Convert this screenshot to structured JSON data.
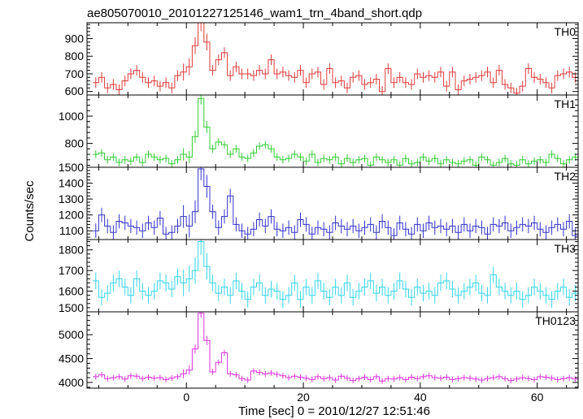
{
  "title": "ae805070010_20101227125146_wam1_trn_4band_short.qdp",
  "ylabel": "Counts/sec",
  "xlabel": "Time [sec] 0 = 2010/12/27 12:51:46",
  "chart_data": {
    "type": "line",
    "style": "step histogram with error bars",
    "title": "ae805070010_20101227125146_wam1_trn_4band_short.qdp",
    "xlabel": "Time [sec] 0 = 2010/12/27 12:51:46",
    "ylabel": "Counts/sec",
    "xlim": [
      -17,
      67
    ],
    "xticks": [
      0,
      20,
      40,
      60
    ],
    "bin_width_sec": 1.0,
    "x_start_sec": -16,
    "panels": [
      {
        "name": "TH0",
        "color": "#e03a3a",
        "ylim": [
          580,
          990
        ],
        "yticks": [
          600,
          700,
          800,
          900
        ],
        "err": 30,
        "peak_t": 1,
        "values": [
          650,
          680,
          620,
          640,
          610,
          660,
          700,
          720,
          680,
          650,
          660,
          630,
          650,
          620,
          690,
          710,
          740,
          860,
          990,
          880,
          720,
          780,
          820,
          690,
          740,
          700,
          700,
          690,
          720,
          700,
          780,
          700,
          710,
          690,
          680,
          720,
          650,
          700,
          710,
          640,
          730,
          650,
          660,
          620,
          680,
          690,
          640,
          650,
          670,
          600,
          730,
          650,
          680,
          650,
          640,
          700,
          680,
          690,
          680,
          710,
          630,
          710,
          610,
          660,
          670,
          680,
          690,
          710,
          650,
          720,
          640,
          620,
          590,
          630,
          730,
          680,
          670,
          650,
          620,
          690,
          700,
          710,
          680,
          660,
          650
        ]
      },
      {
        "name": "TH1",
        "color": "#33cc33",
        "ylim": [
          625,
          1155
        ],
        "yticks": [
          800,
          1000
        ],
        "err": 28,
        "peak_t": 1,
        "values": [
          720,
          730,
          680,
          700,
          660,
          680,
          670,
          700,
          660,
          720,
          700,
          680,
          690,
          650,
          680,
          720,
          700,
          850,
          1130,
          920,
          760,
          810,
          790,
          720,
          760,
          700,
          690,
          730,
          780,
          790,
          760,
          700,
          680,
          690,
          720,
          700,
          670,
          720,
          660,
          690,
          680,
          700,
          650,
          690,
          660,
          680,
          690,
          640,
          700,
          680,
          660,
          680,
          640,
          690,
          650,
          660,
          700,
          670,
          690,
          650,
          680,
          660,
          650,
          670,
          680,
          640,
          700,
          680,
          640,
          660,
          690,
          650,
          640,
          680,
          650,
          670,
          680,
          660,
          720,
          690,
          650,
          680,
          700,
          690,
          660
        ]
      },
      {
        "name": "TH2",
        "color": "#3333cc",
        "ylim": [
          1045,
          1500
        ],
        "yticks": [
          1100,
          1200,
          1300,
          1400,
          1500
        ],
        "err": 45,
        "peak_t": 1,
        "values": [
          1100,
          1200,
          1130,
          1090,
          1160,
          1150,
          1130,
          1120,
          1100,
          1150,
          1120,
          1180,
          1080,
          1090,
          1130,
          1190,
          1130,
          1220,
          1490,
          1380,
          1220,
          1120,
          1190,
          1320,
          1140,
          1100,
          1080,
          1110,
          1170,
          1130,
          1190,
          1110,
          1100,
          1120,
          1090,
          1170,
          1140,
          1080,
          1120,
          1110,
          1090,
          1150,
          1130,
          1110,
          1130,
          1100,
          1120,
          1140,
          1090,
          1160,
          1120,
          1070,
          1150,
          1110,
          1080,
          1140,
          1100,
          1150,
          1120,
          1130,
          1110,
          1130,
          1090,
          1140,
          1100,
          1130,
          1120,
          1080,
          1140,
          1130,
          1150,
          1100,
          1120,
          1140,
          1130,
          1150,
          1110,
          1090,
          1120,
          1140,
          1110,
          1160,
          1070,
          1090,
          1110
        ]
      },
      {
        "name": "TH3",
        "color": "#33d6e8",
        "ylim": [
          1500,
          1850
        ],
        "yticks": [
          1500,
          1600,
          1700,
          1800
        ],
        "err": 40,
        "peak_t": 1,
        "values": [
          1650,
          1570,
          1590,
          1640,
          1660,
          1620,
          1580,
          1660,
          1600,
          1580,
          1600,
          1650,
          1640,
          1610,
          1670,
          1640,
          1660,
          1700,
          1840,
          1720,
          1640,
          1590,
          1620,
          1580,
          1650,
          1600,
          1560,
          1620,
          1640,
          1580,
          1610,
          1600,
          1560,
          1580,
          1640,
          1560,
          1620,
          1580,
          1650,
          1600,
          1570,
          1620,
          1580,
          1640,
          1570,
          1600,
          1620,
          1650,
          1590,
          1620,
          1580,
          1600,
          1650,
          1610,
          1570,
          1620,
          1590,
          1600,
          1580,
          1640,
          1650,
          1610,
          1580,
          1600,
          1620,
          1640,
          1590,
          1580,
          1680,
          1620,
          1600,
          1580,
          1600,
          1560,
          1580,
          1620,
          1600,
          1580,
          1560,
          1600,
          1620,
          1570,
          1590,
          1610,
          1600
        ]
      },
      {
        "name": "TH0123",
        "color": "#dd33dd",
        "ylim": [
          3880,
          5480
        ],
        "yticks": [
          4000,
          4500,
          5000
        ],
        "err": 60,
        "peak_t": 1,
        "values": [
          4120,
          4160,
          4080,
          4100,
          4120,
          4070,
          4140,
          4130,
          4080,
          4110,
          4090,
          4100,
          4060,
          4090,
          4120,
          4180,
          4260,
          4700,
          5450,
          4880,
          4220,
          4420,
          4620,
          4180,
          4160,
          4080,
          4050,
          4240,
          4210,
          4180,
          4200,
          4170,
          4140,
          4100,
          4130,
          4110,
          4090,
          4060,
          4120,
          4080,
          4100,
          4050,
          4130,
          4090,
          4040,
          4080,
          4110,
          4060,
          4120,
          4030,
          4080,
          4070,
          4100,
          4060,
          4110,
          4080,
          4120,
          4140,
          4100,
          4090,
          4110,
          4060,
          4080,
          4100,
          4090,
          4070,
          4050,
          4080,
          4100,
          4120,
          4080,
          4040,
          4070,
          4100,
          4080,
          4060,
          4120,
          4110,
          4090,
          4060,
          4080,
          4100,
          4070,
          4060,
          4050
        ]
      }
    ]
  }
}
